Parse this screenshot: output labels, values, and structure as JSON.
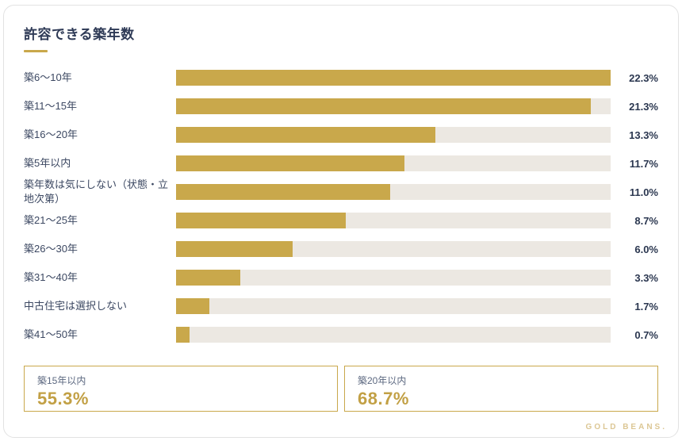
{
  "title": "許容できる築年数",
  "chart_data": {
    "type": "bar",
    "orientation": "horizontal",
    "title": "許容できる築年数",
    "categories": [
      "築6〜10年",
      "築11〜15年",
      "築16〜20年",
      "築5年以内",
      "築年数は気にしない（状態・立地次第）",
      "築21〜25年",
      "築26〜30年",
      "築31〜40年",
      "中古住宅は選択しない",
      "築41〜50年"
    ],
    "values": [
      22.3,
      21.3,
      13.3,
      11.7,
      11.0,
      8.7,
      6.0,
      3.3,
      1.7,
      0.7
    ],
    "value_labels": [
      "22.3%",
      "21.3%",
      "13.3%",
      "11.7%",
      "11.0%",
      "8.7%",
      "6.0%",
      "3.3%",
      "1.7%",
      "0.7%"
    ],
    "axis_max": 22.3,
    "grid": false,
    "bar_color": "#C9A84B",
    "track_color": "#ECE8E2"
  },
  "summary": {
    "box1": {
      "label": "築15年以内",
      "value": "55.3%"
    },
    "box2": {
      "label": "築20年以内",
      "value": "68.7%"
    }
  },
  "footer": {
    "brand": "GOLD BEANS."
  },
  "colors": {
    "accent_gold": "#C9A84B",
    "text_navy": "#2E3A56",
    "track_gray": "#ECE8E2",
    "brand_gold_light": "#DCC795"
  }
}
